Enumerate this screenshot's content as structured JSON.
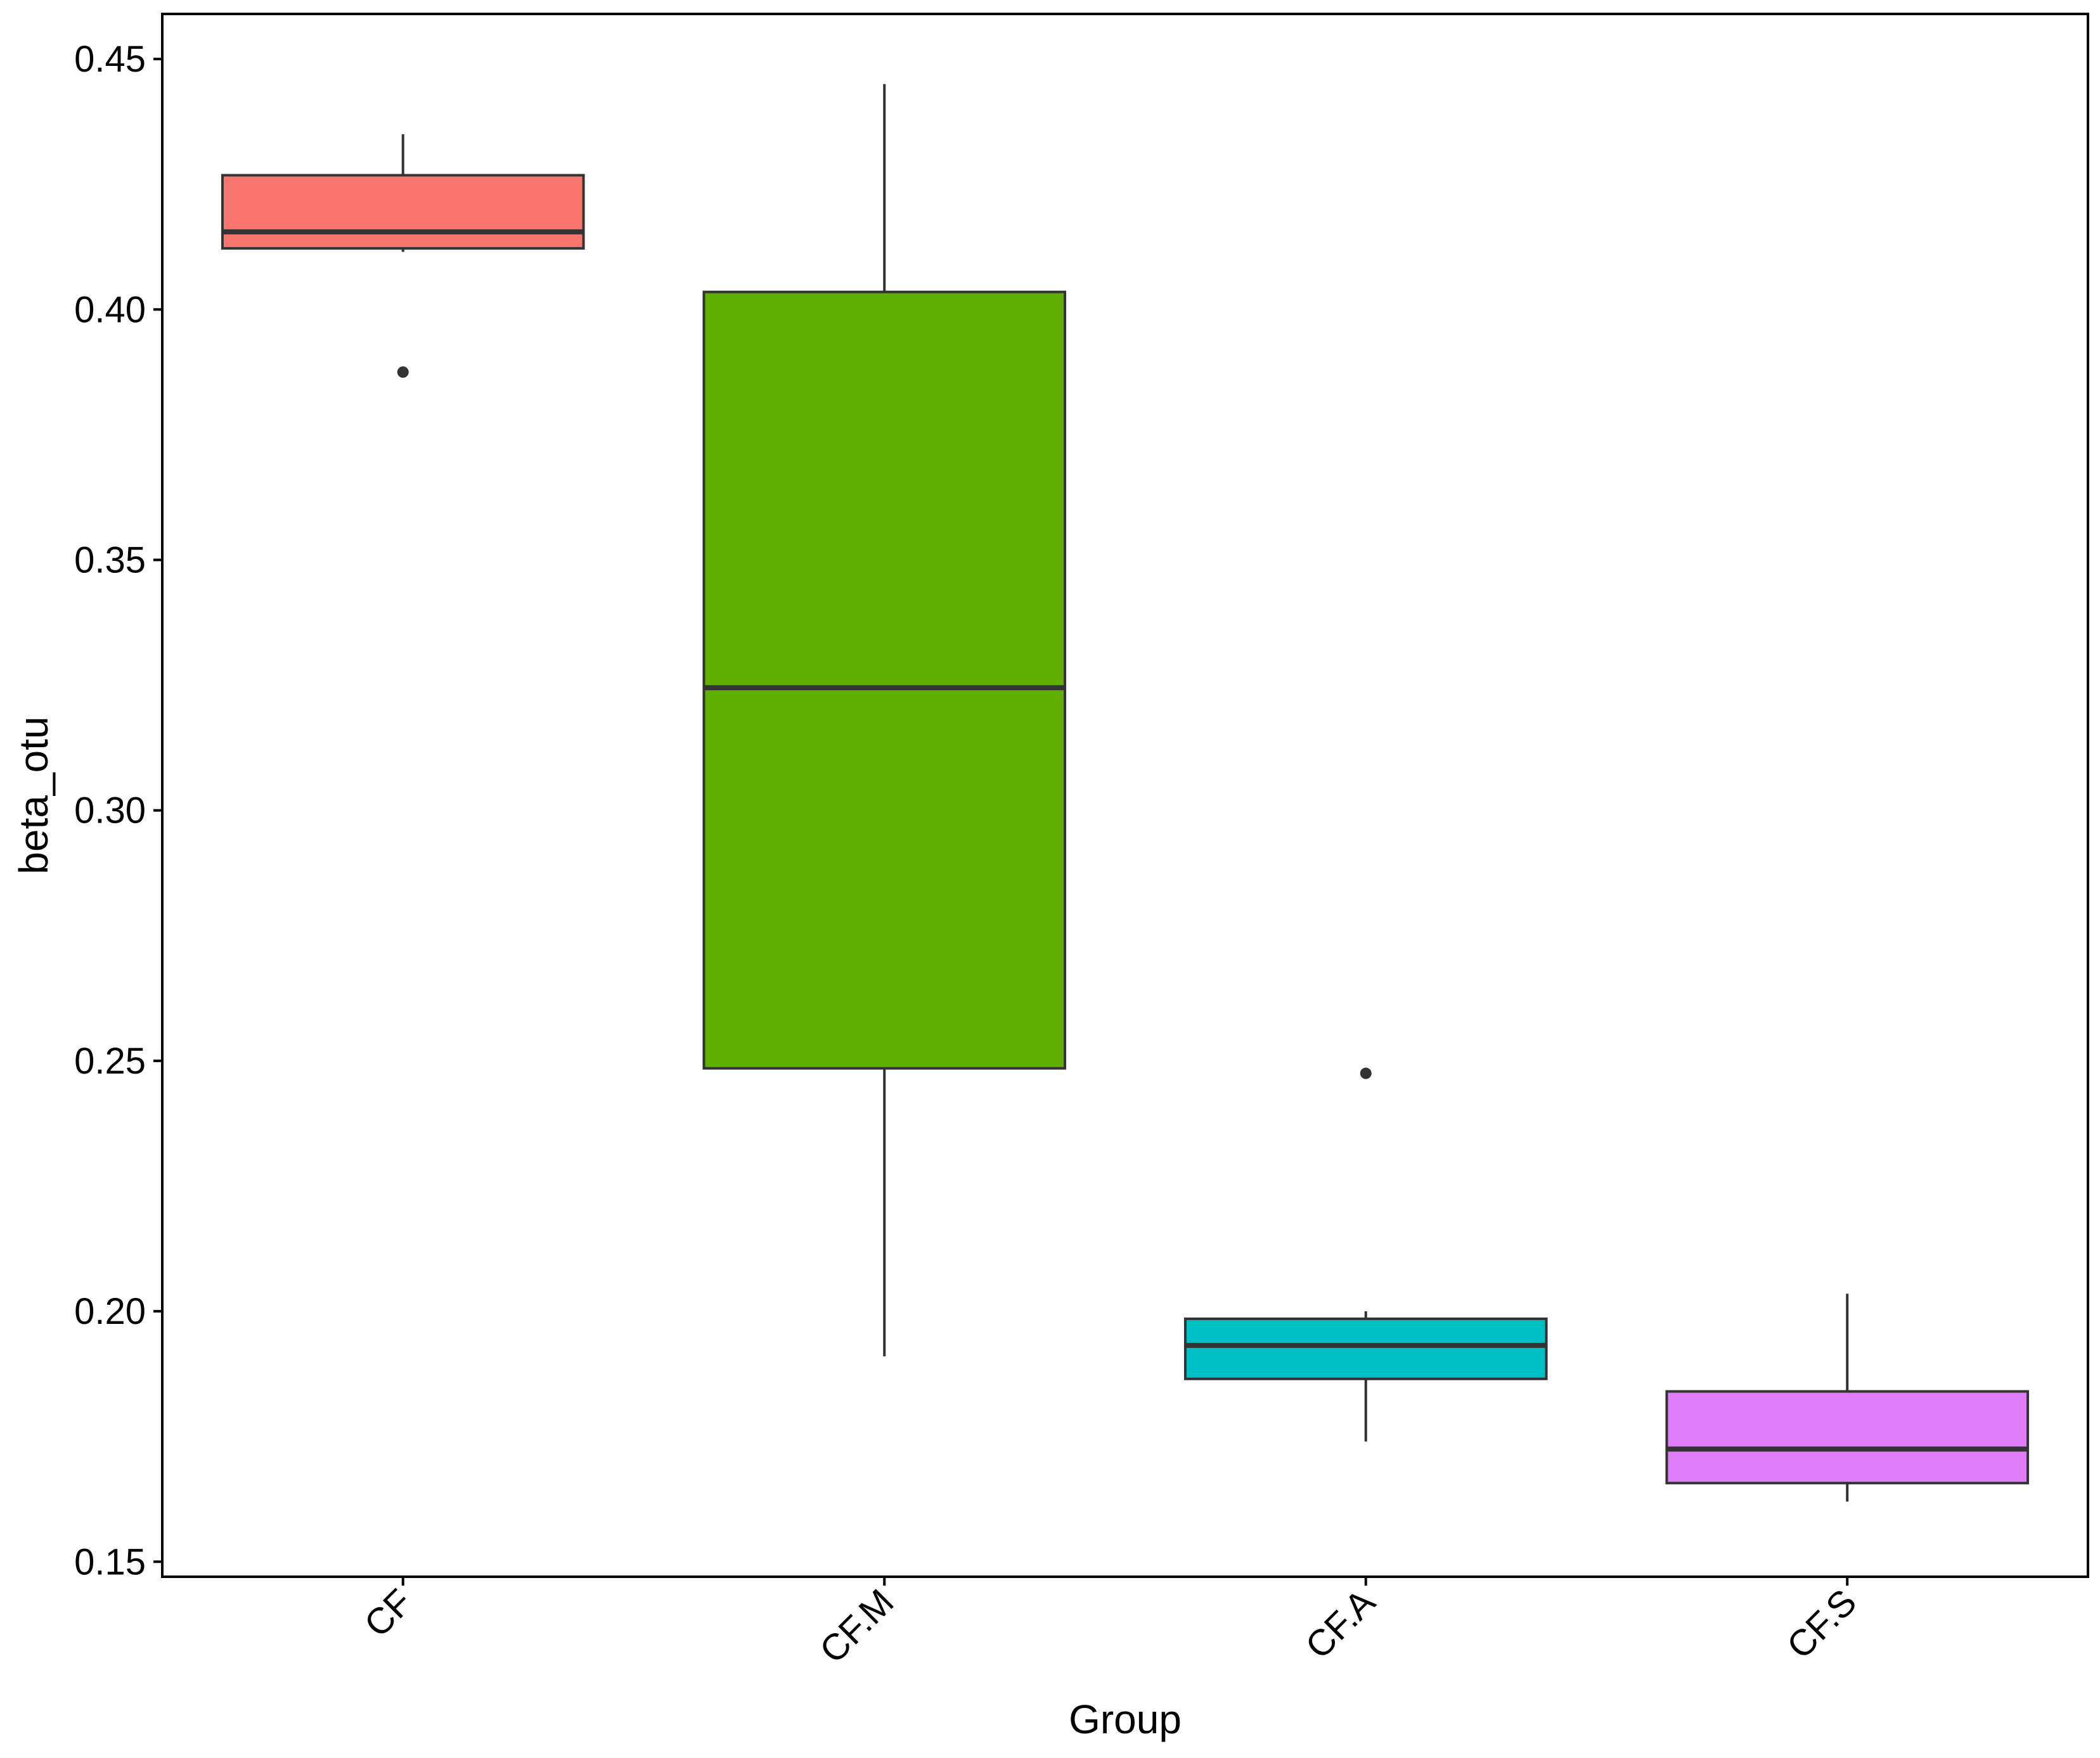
{
  "chart_data": {
    "type": "boxplot",
    "xlabel": "Group",
    "ylabel": "beta_otu",
    "ylim": [
      0.147,
      0.459
    ],
    "yticks": [
      0.15,
      0.2,
      0.25,
      0.3,
      0.35,
      0.4,
      0.45
    ],
    "ytick_labels": [
      "0.15",
      "0.20",
      "0.25",
      "0.30",
      "0.35",
      "0.40",
      "0.45"
    ],
    "grid": false,
    "legend": "none",
    "categories": [
      "CF",
      "CF.M",
      "CF.A",
      "CF.S"
    ],
    "boxes": [
      {
        "group": "CF",
        "whisker_low": 0.4115,
        "q1": 0.4122,
        "median": 0.4155,
        "q3": 0.4268,
        "whisker_high": 0.435,
        "outliers": [
          0.3875
        ],
        "color": "#F8766D"
      },
      {
        "group": "CF.M",
        "whisker_low": 0.191,
        "q1": 0.2485,
        "median": 0.3245,
        "q3": 0.4035,
        "whisker_high": 0.445,
        "outliers": [],
        "color": "#5FB000"
      },
      {
        "group": "CF.A",
        "whisker_low": 0.174,
        "q1": 0.1865,
        "median": 0.1932,
        "q3": 0.1985,
        "whisker_high": 0.2,
        "outliers": [
          0.2475
        ],
        "color": "#00BFC4"
      },
      {
        "group": "CF.S",
        "whisker_low": 0.162,
        "q1": 0.1657,
        "median": 0.1725,
        "q3": 0.184,
        "whisker_high": 0.2035,
        "outliers": [],
        "color": "#DF7CF8"
      }
    ]
  }
}
